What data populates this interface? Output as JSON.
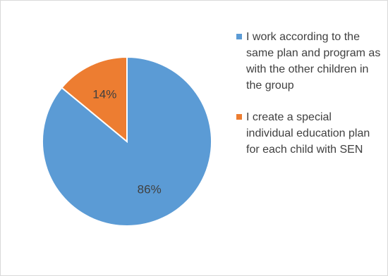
{
  "chart_data": {
    "type": "pie",
    "title": "",
    "slices": [
      {
        "label": "I work according to the same plan and program as with the other children in the group",
        "value": 86,
        "value_label": "86%",
        "color": "#5b9bd5"
      },
      {
        "label": "I create a special individual education plan for each child with SEN",
        "value": 14,
        "value_label": "14%",
        "color": "#ed7d31"
      }
    ],
    "legend_placement": "right",
    "start_angle_deg": 0,
    "direction": "clockwise"
  }
}
